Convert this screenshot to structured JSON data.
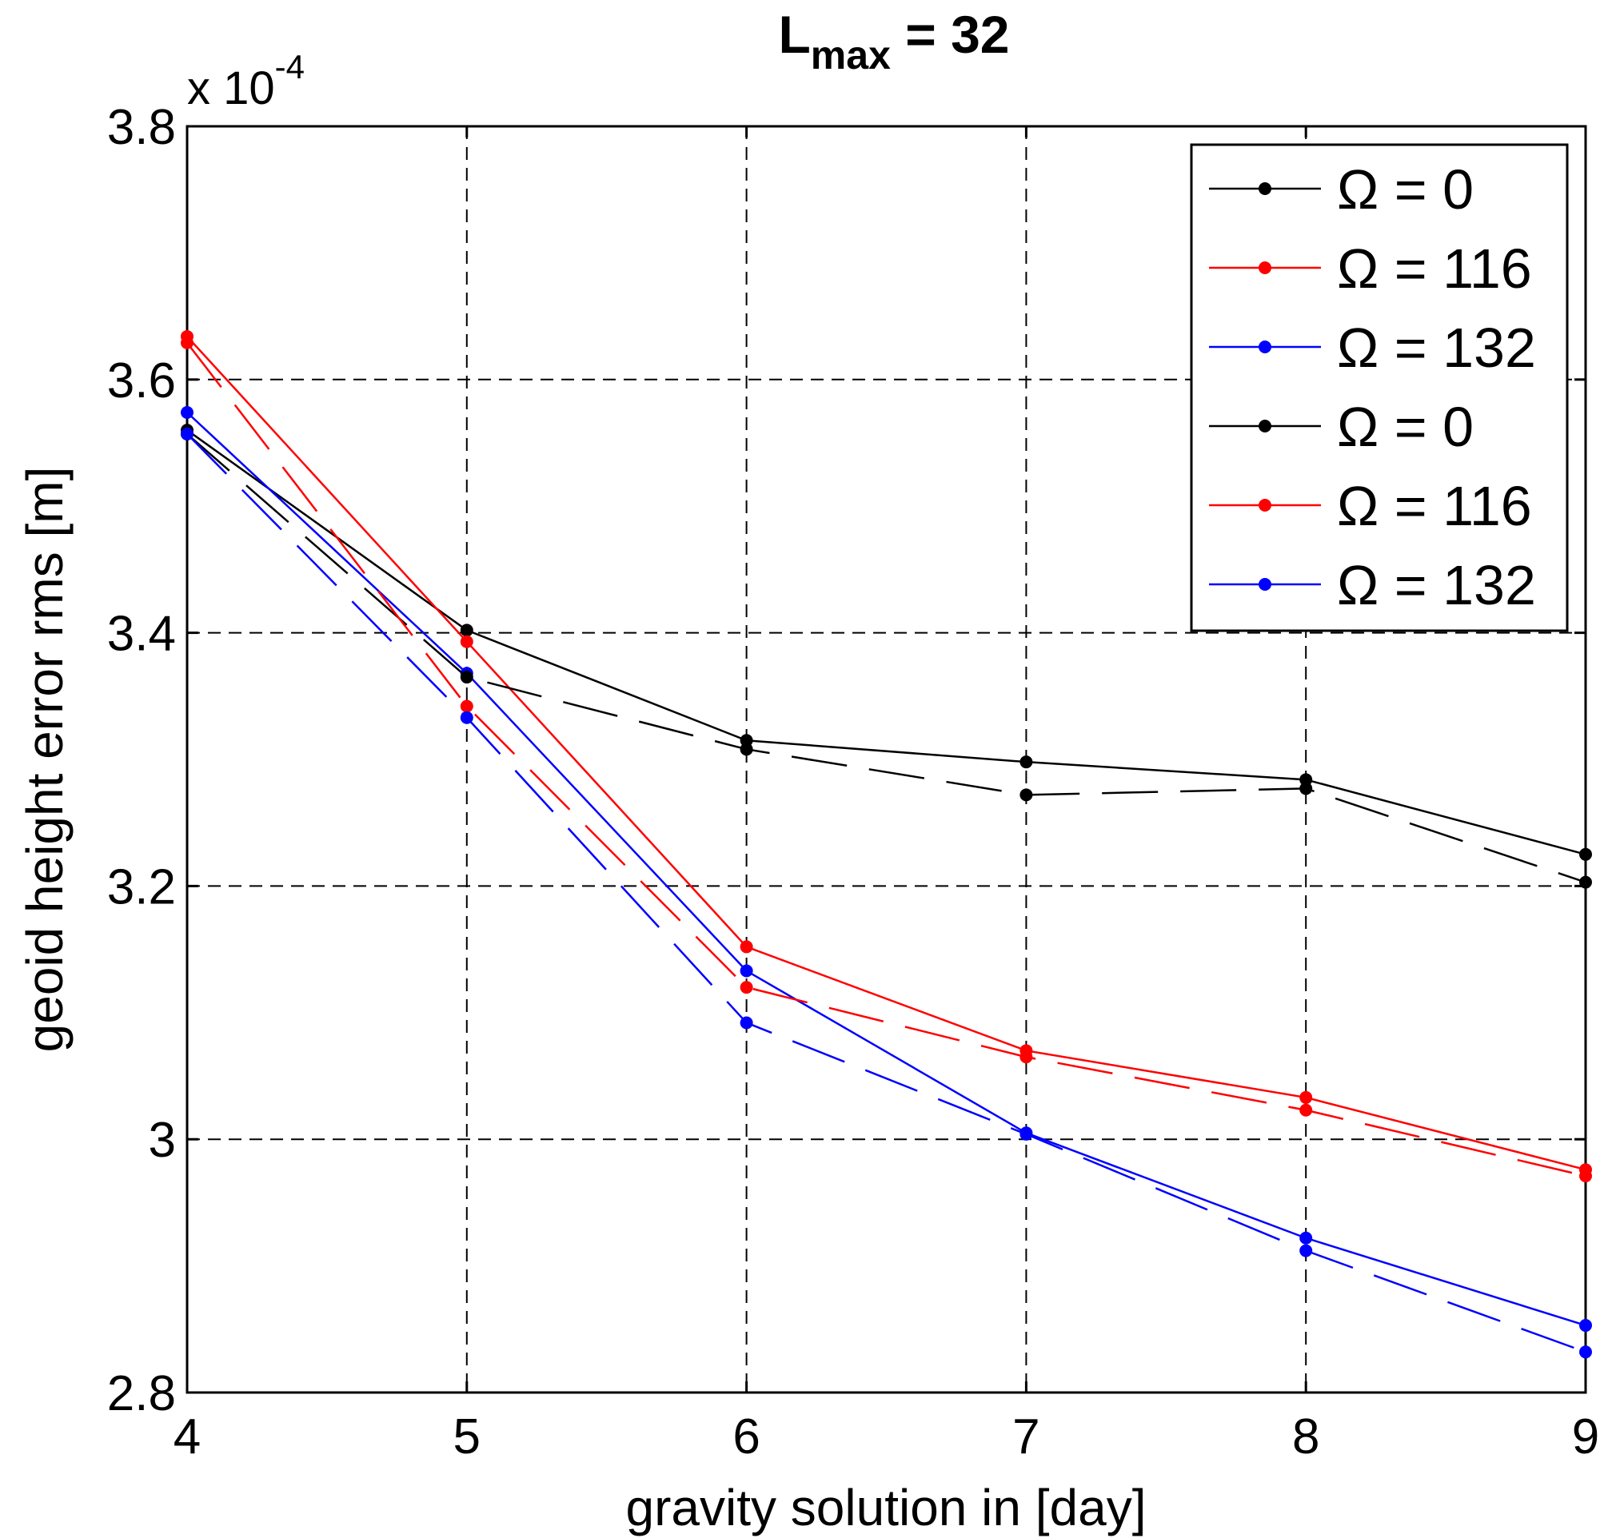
{
  "chart_data": {
    "type": "line",
    "title": {
      "main": "L",
      "sub": "max",
      "rest": " = 32"
    },
    "xlabel": "gravity solution in [day]",
    "ylabel": "geoid height error rms [m]",
    "y_multiplier": {
      "base": "x 10",
      "exponent": "-4"
    },
    "x": [
      4,
      5,
      6,
      7,
      8,
      9
    ],
    "xlim": [
      4,
      9
    ],
    "ylim": [
      2.8,
      3.8
    ],
    "x_ticks": [
      "4",
      "5",
      "6",
      "7",
      "8",
      "9"
    ],
    "y_ticks": [
      {
        "value": 2.8,
        "label": "2.8"
      },
      {
        "value": 3.0,
        "label": "3"
      },
      {
        "value": 3.2,
        "label": "3.2"
      },
      {
        "value": 3.4,
        "label": "3.4"
      },
      {
        "value": 3.6,
        "label": "3.6"
      },
      {
        "value": 3.8,
        "label": "3.8"
      }
    ],
    "grid": true,
    "legend_position": "top-right",
    "series": [
      {
        "name": "Ω = 0",
        "color": "#000000",
        "style": "solid",
        "values": [
          3.56,
          3.402,
          3.315,
          3.298,
          3.284,
          3.225
        ]
      },
      {
        "name": "Ω = 116",
        "color": "#ff0000",
        "style": "solid",
        "values": [
          3.634,
          3.393,
          3.152,
          3.07,
          3.033,
          2.976
        ]
      },
      {
        "name": "Ω = 132",
        "color": "#0000ff",
        "style": "solid",
        "values": [
          3.574,
          3.368,
          3.133,
          3.005,
          2.922,
          2.853
        ]
      },
      {
        "name": "Ω = 0",
        "color": "#000000",
        "style": "dashed",
        "values": [
          3.557,
          3.365,
          3.308,
          3.272,
          3.277,
          3.203
        ]
      },
      {
        "name": "Ω = 116",
        "color": "#ff0000",
        "style": "dashed",
        "values": [
          3.629,
          3.342,
          3.12,
          3.065,
          3.023,
          2.971
        ]
      },
      {
        "name": "Ω = 132",
        "color": "#0000ff",
        "style": "dashed",
        "values": [
          3.557,
          3.333,
          3.092,
          3.004,
          2.912,
          2.832
        ]
      }
    ]
  }
}
